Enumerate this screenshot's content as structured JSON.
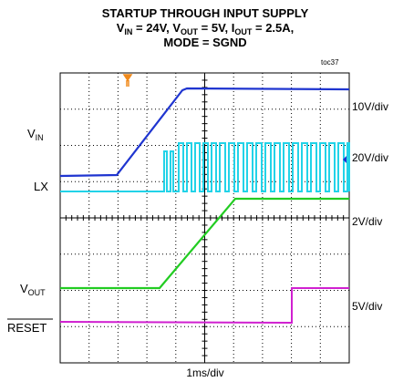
{
  "title": {
    "line1": "STARTUP THROUGH INPUT SUPPLY",
    "line2": [
      "V",
      "IN",
      " = 24V, V",
      "OUT",
      " = 5V, I",
      "OUT",
      " = 2.5A,"
    ],
    "line3": "MODE = SGND"
  },
  "figure_id": "toc37",
  "trace_labels": {
    "vin": [
      "V",
      "IN"
    ],
    "lx": "LX",
    "vout": [
      "V",
      "OUT"
    ],
    "reset": "RESET"
  },
  "scales": [
    "10V/div",
    "20V/div",
    "2V/div",
    "5V/div"
  ],
  "time_scale": "1ms/div"
}
